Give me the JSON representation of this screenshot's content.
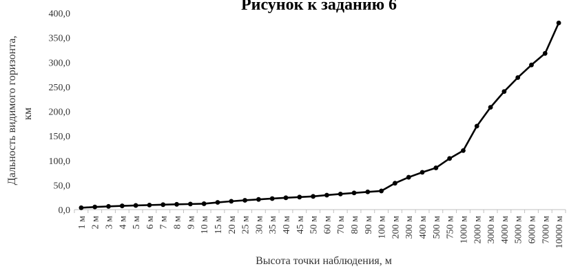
{
  "chart_data": {
    "type": "line",
    "title": "Рисунок к заданию 6",
    "xlabel": "Высота точки наблюдения, м",
    "ylabel_line1": "Дальность видимого горизонта,",
    "ylabel_line2": "км",
    "ylim": [
      0,
      400
    ],
    "yticks": [
      "0,0",
      "50,0",
      "100,0",
      "150,0",
      "200,0",
      "250,0",
      "300,0",
      "350,0",
      "400,0"
    ],
    "grid": false,
    "legend": "none",
    "categories": [
      "1 м",
      "2 м",
      "3 м",
      "4 м",
      "5 м",
      "6 м",
      "7 м",
      "8 м",
      "9 м",
      "10 м",
      "15 м",
      "20 м",
      "25 м",
      "30 м",
      "35 м",
      "40 м",
      "45 м",
      "50 м",
      "60 м",
      "70 м",
      "80 м",
      "90 м",
      "100 м",
      "200 м",
      "300 м",
      "400 м",
      "500 м",
      "750 м",
      "1000 м",
      "2000 м",
      "3000 м",
      "4000 м",
      "5000 м",
      "6000 м",
      "7000 м",
      "10000 м"
    ],
    "values": [
      3.8,
      5.4,
      6.6,
      7.6,
      8.5,
      9.3,
      10.1,
      10.8,
      11.4,
      12.0,
      14.7,
      17.0,
      19.0,
      20.8,
      22.5,
      24.1,
      25.5,
      26.9,
      29.5,
      31.8,
      34.0,
      36.1,
      38.0,
      53.8,
      65.9,
      76.0,
      85.0,
      104.1,
      120.2,
      170.0,
      208.2,
      240.4,
      268.8,
      294.5,
      318.0,
      380.0
    ],
    "colors": {
      "line": "#000000",
      "axis": "#bfbfbf"
    }
  }
}
